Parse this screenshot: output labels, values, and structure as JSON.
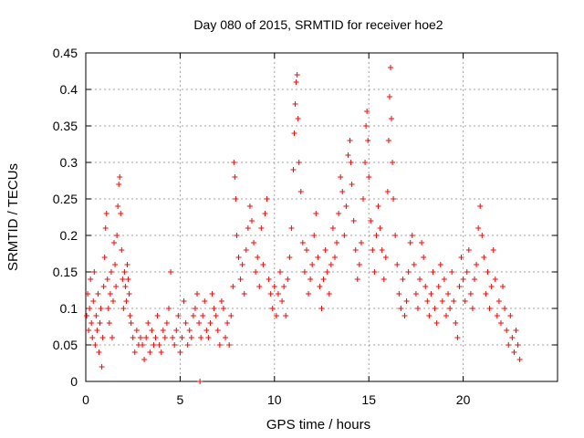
{
  "chart_data": {
    "type": "scatter",
    "title": "Day 080 of 2015, SRMTID for receiver hoe2",
    "xlabel": "GPS time / hours",
    "ylabel": "SRMTID / TECUs",
    "xlim": [
      0,
      25
    ],
    "ylim": [
      0,
      0.45
    ],
    "xticks": [
      0,
      5,
      10,
      15,
      20
    ],
    "xtick_labels": [
      "0",
      "5",
      "10",
      "15",
      "20"
    ],
    "yticks": [
      0,
      0.05,
      0.1,
      0.15,
      0.2,
      0.25,
      0.3,
      0.35,
      0.4,
      0.45
    ],
    "ytick_labels": [
      "0",
      "0.05",
      "0.1",
      "0.15",
      "0.2",
      "0.25",
      "0.3",
      "0.35",
      "0.4",
      "0.45"
    ],
    "grid": true,
    "marker": "+",
    "series": [
      {
        "name": "SRMTID",
        "color": "#ff0000",
        "points": [
          [
            0.05,
            0.09
          ],
          [
            0.1,
            0.12
          ],
          [
            0.15,
            0.07
          ],
          [
            0.2,
            0.1
          ],
          [
            0.25,
            0.14
          ],
          [
            0.3,
            0.08
          ],
          [
            0.35,
            0.06
          ],
          [
            0.4,
            0.11
          ],
          [
            0.45,
            0.15
          ],
          [
            0.5,
            0.05
          ],
          [
            0.55,
            0.09
          ],
          [
            0.6,
            0.07
          ],
          [
            0.65,
            0.12
          ],
          [
            0.7,
            0.04
          ],
          [
            0.75,
            0.08
          ],
          [
            0.8,
            0.1
          ],
          [
            0.85,
            0.02
          ],
          [
            0.9,
            0.06
          ],
          [
            0.95,
            0.13
          ],
          [
            1.0,
            0.17
          ],
          [
            1.05,
            0.21
          ],
          [
            1.1,
            0.23
          ],
          [
            1.15,
            0.14
          ],
          [
            1.2,
            0.1
          ],
          [
            1.25,
            0.08
          ],
          [
            1.3,
            0.12
          ],
          [
            1.35,
            0.15
          ],
          [
            1.4,
            0.06
          ],
          [
            1.45,
            0.11
          ],
          [
            1.5,
            0.19
          ],
          [
            1.55,
            0.16
          ],
          [
            1.6,
            0.13
          ],
          [
            1.65,
            0.2
          ],
          [
            1.7,
            0.24
          ],
          [
            1.75,
            0.27
          ],
          [
            1.8,
            0.28
          ],
          [
            1.85,
            0.23
          ],
          [
            1.9,
            0.18
          ],
          [
            1.95,
            0.14
          ],
          [
            2.0,
            0.1
          ],
          [
            2.05,
            0.15
          ],
          [
            2.1,
            0.13
          ],
          [
            2.15,
            0.11
          ],
          [
            2.2,
            0.16
          ],
          [
            2.25,
            0.14
          ],
          [
            2.3,
            0.12
          ],
          [
            2.35,
            0.09
          ],
          [
            2.4,
            0.08
          ],
          [
            2.5,
            0.06
          ],
          [
            2.6,
            0.04
          ],
          [
            2.7,
            0.07
          ],
          [
            2.8,
            0.05
          ],
          [
            2.9,
            0.06
          ],
          [
            3.0,
            0.05
          ],
          [
            3.1,
            0.03
          ],
          [
            3.2,
            0.06
          ],
          [
            3.3,
            0.08
          ],
          [
            3.4,
            0.04
          ],
          [
            3.5,
            0.07
          ],
          [
            3.6,
            0.05
          ],
          [
            3.7,
            0.06
          ],
          [
            3.8,
            0.09
          ],
          [
            3.9,
            0.05
          ],
          [
            4.0,
            0.04
          ],
          [
            4.1,
            0.07
          ],
          [
            4.2,
            0.06
          ],
          [
            4.3,
            0.08
          ],
          [
            4.4,
            0.1
          ],
          [
            4.5,
            0.15
          ],
          [
            4.6,
            0.06
          ],
          [
            4.7,
            0.05
          ],
          [
            4.8,
            0.07
          ],
          [
            4.9,
            0.09
          ],
          [
            5.0,
            0.04
          ],
          [
            5.1,
            0.06
          ],
          [
            5.2,
            0.11
          ],
          [
            5.3,
            0.08
          ],
          [
            5.4,
            0.05
          ],
          [
            5.5,
            0.07
          ],
          [
            5.6,
            0.06
          ],
          [
            5.7,
            0.09
          ],
          [
            5.8,
            0.1
          ],
          [
            5.9,
            0.12
          ],
          [
            6.0,
            0.08
          ],
          [
            6.05,
            0.0
          ],
          [
            6.1,
            0.06
          ],
          [
            6.2,
            0.09
          ],
          [
            6.3,
            0.11
          ],
          [
            6.4,
            0.07
          ],
          [
            6.5,
            0.06
          ],
          [
            6.6,
            0.08
          ],
          [
            6.7,
            0.12
          ],
          [
            6.8,
            0.1
          ],
          [
            6.9,
            0.09
          ],
          [
            7.0,
            0.07
          ],
          [
            7.1,
            0.05
          ],
          [
            7.2,
            0.11
          ],
          [
            7.3,
            0.1
          ],
          [
            7.4,
            0.06
          ],
          [
            7.5,
            0.08
          ],
          [
            7.6,
            0.05
          ],
          [
            7.7,
            0.09
          ],
          [
            7.8,
            0.13
          ],
          [
            7.85,
            0.3
          ],
          [
            7.9,
            0.28
          ],
          [
            7.95,
            0.25
          ],
          [
            8.0,
            0.2
          ],
          [
            8.1,
            0.17
          ],
          [
            8.2,
            0.14
          ],
          [
            8.3,
            0.16
          ],
          [
            8.4,
            0.12
          ],
          [
            8.5,
            0.18
          ],
          [
            8.6,
            0.21
          ],
          [
            8.7,
            0.24
          ],
          [
            8.8,
            0.22
          ],
          [
            8.9,
            0.19
          ],
          [
            9.0,
            0.15
          ],
          [
            9.1,
            0.17
          ],
          [
            9.2,
            0.13
          ],
          [
            9.3,
            0.21
          ],
          [
            9.4,
            0.16
          ],
          [
            9.5,
            0.23
          ],
          [
            9.6,
            0.25
          ],
          [
            9.7,
            0.14
          ],
          [
            9.8,
            0.12
          ],
          [
            9.9,
            0.1
          ],
          [
            10.0,
            0.13
          ],
          [
            10.1,
            0.09
          ],
          [
            10.2,
            0.12
          ],
          [
            10.3,
            0.15
          ],
          [
            10.4,
            0.11
          ],
          [
            10.5,
            0.13
          ],
          [
            10.6,
            0.09
          ],
          [
            10.7,
            0.14
          ],
          [
            10.8,
            0.17
          ],
          [
            10.9,
            0.21
          ],
          [
            11.0,
            0.29
          ],
          [
            11.05,
            0.34
          ],
          [
            11.1,
            0.38
          ],
          [
            11.15,
            0.41
          ],
          [
            11.2,
            0.42
          ],
          [
            11.25,
            0.36
          ],
          [
            11.3,
            0.3
          ],
          [
            11.4,
            0.26
          ],
          [
            11.5,
            0.19
          ],
          [
            11.6,
            0.15
          ],
          [
            11.7,
            0.18
          ],
          [
            11.8,
            0.12
          ],
          [
            11.9,
            0.14
          ],
          [
            12.0,
            0.16
          ],
          [
            12.1,
            0.2
          ],
          [
            12.2,
            0.23
          ],
          [
            12.3,
            0.17
          ],
          [
            12.4,
            0.13
          ],
          [
            12.5,
            0.1
          ],
          [
            12.6,
            0.14
          ],
          [
            12.7,
            0.18
          ],
          [
            12.8,
            0.15
          ],
          [
            12.9,
            0.12
          ],
          [
            13.0,
            0.16
          ],
          [
            13.1,
            0.21
          ],
          [
            13.2,
            0.17
          ],
          [
            13.3,
            0.19
          ],
          [
            13.4,
            0.23
          ],
          [
            13.5,
            0.28
          ],
          [
            13.6,
            0.26
          ],
          [
            13.7,
            0.2
          ],
          [
            13.8,
            0.24
          ],
          [
            13.9,
            0.31
          ],
          [
            14.0,
            0.33
          ],
          [
            14.05,
            0.3
          ],
          [
            14.1,
            0.27
          ],
          [
            14.2,
            0.22
          ],
          [
            14.3,
            0.18
          ],
          [
            14.4,
            0.14
          ],
          [
            14.5,
            0.16
          ],
          [
            14.6,
            0.19
          ],
          [
            14.7,
            0.25
          ],
          [
            14.8,
            0.3
          ],
          [
            14.85,
            0.35
          ],
          [
            14.9,
            0.37
          ],
          [
            14.95,
            0.33
          ],
          [
            15.0,
            0.28
          ],
          [
            15.1,
            0.22
          ],
          [
            15.2,
            0.18
          ],
          [
            15.3,
            0.15
          ],
          [
            15.4,
            0.2
          ],
          [
            15.5,
            0.24
          ],
          [
            15.6,
            0.21
          ],
          [
            15.7,
            0.18
          ],
          [
            15.8,
            0.14
          ],
          [
            15.9,
            0.17
          ],
          [
            16.0,
            0.26
          ],
          [
            16.05,
            0.33
          ],
          [
            16.1,
            0.39
          ],
          [
            16.15,
            0.43
          ],
          [
            16.2,
            0.36
          ],
          [
            16.25,
            0.3
          ],
          [
            16.3,
            0.25
          ],
          [
            16.4,
            0.2
          ],
          [
            16.5,
            0.16
          ],
          [
            16.6,
            0.12
          ],
          [
            16.7,
            0.1
          ],
          [
            16.8,
            0.14
          ],
          [
            16.9,
            0.09
          ],
          [
            17.0,
            0.11
          ],
          [
            17.1,
            0.15
          ],
          [
            17.2,
            0.19
          ],
          [
            17.3,
            0.2
          ],
          [
            17.4,
            0.16
          ],
          [
            17.5,
            0.12
          ],
          [
            17.6,
            0.1
          ],
          [
            17.7,
            0.14
          ],
          [
            17.8,
            0.19
          ],
          [
            17.9,
            0.17
          ],
          [
            18.0,
            0.13
          ],
          [
            18.1,
            0.11
          ],
          [
            18.2,
            0.09
          ],
          [
            18.3,
            0.12
          ],
          [
            18.4,
            0.15
          ],
          [
            18.5,
            0.1
          ],
          [
            18.6,
            0.08
          ],
          [
            18.7,
            0.13
          ],
          [
            18.8,
            0.16
          ],
          [
            18.9,
            0.11
          ],
          [
            19.0,
            0.14
          ],
          [
            19.1,
            0.09
          ],
          [
            19.2,
            0.12
          ],
          [
            19.3,
            0.1
          ],
          [
            19.4,
            0.15
          ],
          [
            19.5,
            0.11
          ],
          [
            19.6,
            0.08
          ],
          [
            19.7,
            0.06
          ],
          [
            19.8,
            0.13
          ],
          [
            19.9,
            0.17
          ],
          [
            20.0,
            0.14
          ],
          [
            20.1,
            0.11
          ],
          [
            20.2,
            0.15
          ],
          [
            20.3,
            0.18
          ],
          [
            20.4,
            0.12
          ],
          [
            20.5,
            0.1
          ],
          [
            20.6,
            0.14
          ],
          [
            20.7,
            0.16
          ],
          [
            20.8,
            0.21
          ],
          [
            20.9,
            0.24
          ],
          [
            21.0,
            0.2
          ],
          [
            21.1,
            0.17
          ],
          [
            21.2,
            0.12
          ],
          [
            21.3,
            0.15
          ],
          [
            21.4,
            0.1
          ],
          [
            21.5,
            0.13
          ],
          [
            21.6,
            0.18
          ],
          [
            21.7,
            0.14
          ],
          [
            21.8,
            0.09
          ],
          [
            21.9,
            0.11
          ],
          [
            22.0,
            0.08
          ],
          [
            22.1,
            0.13
          ],
          [
            22.2,
            0.1
          ],
          [
            22.3,
            0.07
          ],
          [
            22.4,
            0.05
          ],
          [
            22.5,
            0.09
          ],
          [
            22.6,
            0.06
          ],
          [
            22.7,
            0.04
          ],
          [
            22.8,
            0.07
          ],
          [
            22.9,
            0.05
          ],
          [
            23.0,
            0.03
          ]
        ]
      }
    ]
  }
}
